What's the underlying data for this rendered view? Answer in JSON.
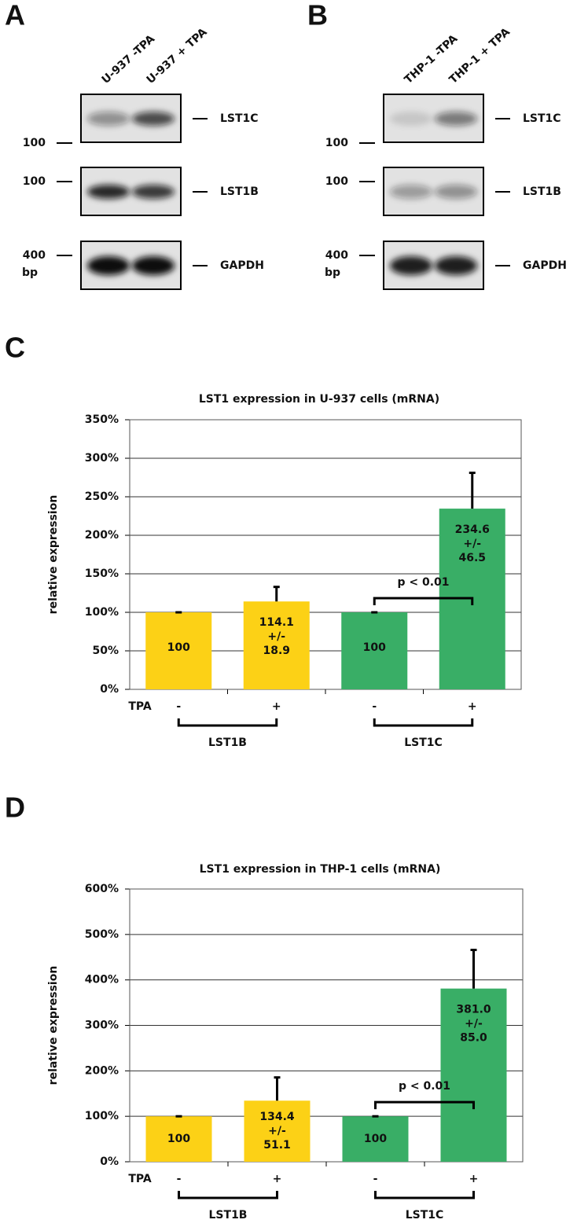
{
  "gels": [
    {
      "label": "A",
      "lanes": [
        "U-937 -TPA",
        "U-937 + TPA"
      ],
      "bands": [
        "LST1C",
        "LST1B",
        "GAPDH"
      ],
      "markers": [
        "100",
        "100",
        "400"
      ],
      "unit": "bp"
    },
    {
      "label": "B",
      "lanes": [
        "THP-1 -TPA",
        "THP-1 + TPA"
      ],
      "bands": [
        "LST1C",
        "LST1B",
        "GAPDH"
      ],
      "markers": [
        "100",
        "100",
        "400"
      ],
      "unit": "bp"
    }
  ],
  "chart_data": [
    {
      "type": "bar",
      "panel": "C",
      "title": "LST1 expression in U-937 cells (mRNA)",
      "y_label": "relative expression",
      "row_label": "TPA",
      "categories": [
        "-",
        "+",
        "-",
        "+"
      ],
      "groups": [
        "LST1B",
        "LST1C"
      ],
      "values": [
        100,
        114.1,
        100,
        234.6
      ],
      "value_labels": [
        "100",
        "114.1",
        "100",
        "234.6"
      ],
      "errors": [
        0,
        18.9,
        0,
        46.5
      ],
      "error_labels": [
        null,
        "18.9",
        null,
        "46.5"
      ],
      "pm_sign": "+/-",
      "colors": [
        "#fcd116",
        "#fcd116",
        "#39ae66",
        "#39ae66"
      ],
      "annotation": "p < 0.01",
      "grid": true,
      "ylim": [
        0,
        350
      ],
      "yticks": [
        {
          "value": 0,
          "label": "0%"
        },
        {
          "value": 50,
          "label": "50%"
        },
        {
          "value": 100,
          "label": "100%"
        },
        {
          "value": 150,
          "label": "150%"
        },
        {
          "value": 200,
          "label": "200%"
        },
        {
          "value": 250,
          "label": "250%"
        },
        {
          "value": 300,
          "label": "300%"
        },
        {
          "value": 350,
          "label": "350%"
        }
      ]
    },
    {
      "type": "bar",
      "panel": "D",
      "title": "LST1 expression in THP-1 cells (mRNA)",
      "y_label": "relative expression",
      "row_label": "TPA",
      "categories": [
        "-",
        "+",
        "-",
        "+"
      ],
      "groups": [
        "LST1B",
        "LST1C"
      ],
      "values": [
        100,
        134.4,
        100,
        381
      ],
      "value_labels": [
        "100",
        "134.4",
        "100",
        "381.0"
      ],
      "errors": [
        0,
        51.1,
        0,
        85
      ],
      "error_labels": [
        null,
        "51.1",
        null,
        "85.0"
      ],
      "pm_sign": "+/-",
      "colors": [
        "#fcd116",
        "#fcd116",
        "#39ae66",
        "#39ae66"
      ],
      "annotation": "p < 0.01",
      "grid": true,
      "ylim": [
        0,
        600
      ],
      "yticks": [
        {
          "value": 0,
          "label": "0%"
        },
        {
          "value": 100,
          "label": "100%"
        },
        {
          "value": 200,
          "label": "200%"
        },
        {
          "value": 300,
          "label": "300%"
        },
        {
          "value": 400,
          "label": "400%"
        },
        {
          "value": 500,
          "label": "500%"
        },
        {
          "value": 600,
          "label": "600%"
        }
      ]
    }
  ]
}
